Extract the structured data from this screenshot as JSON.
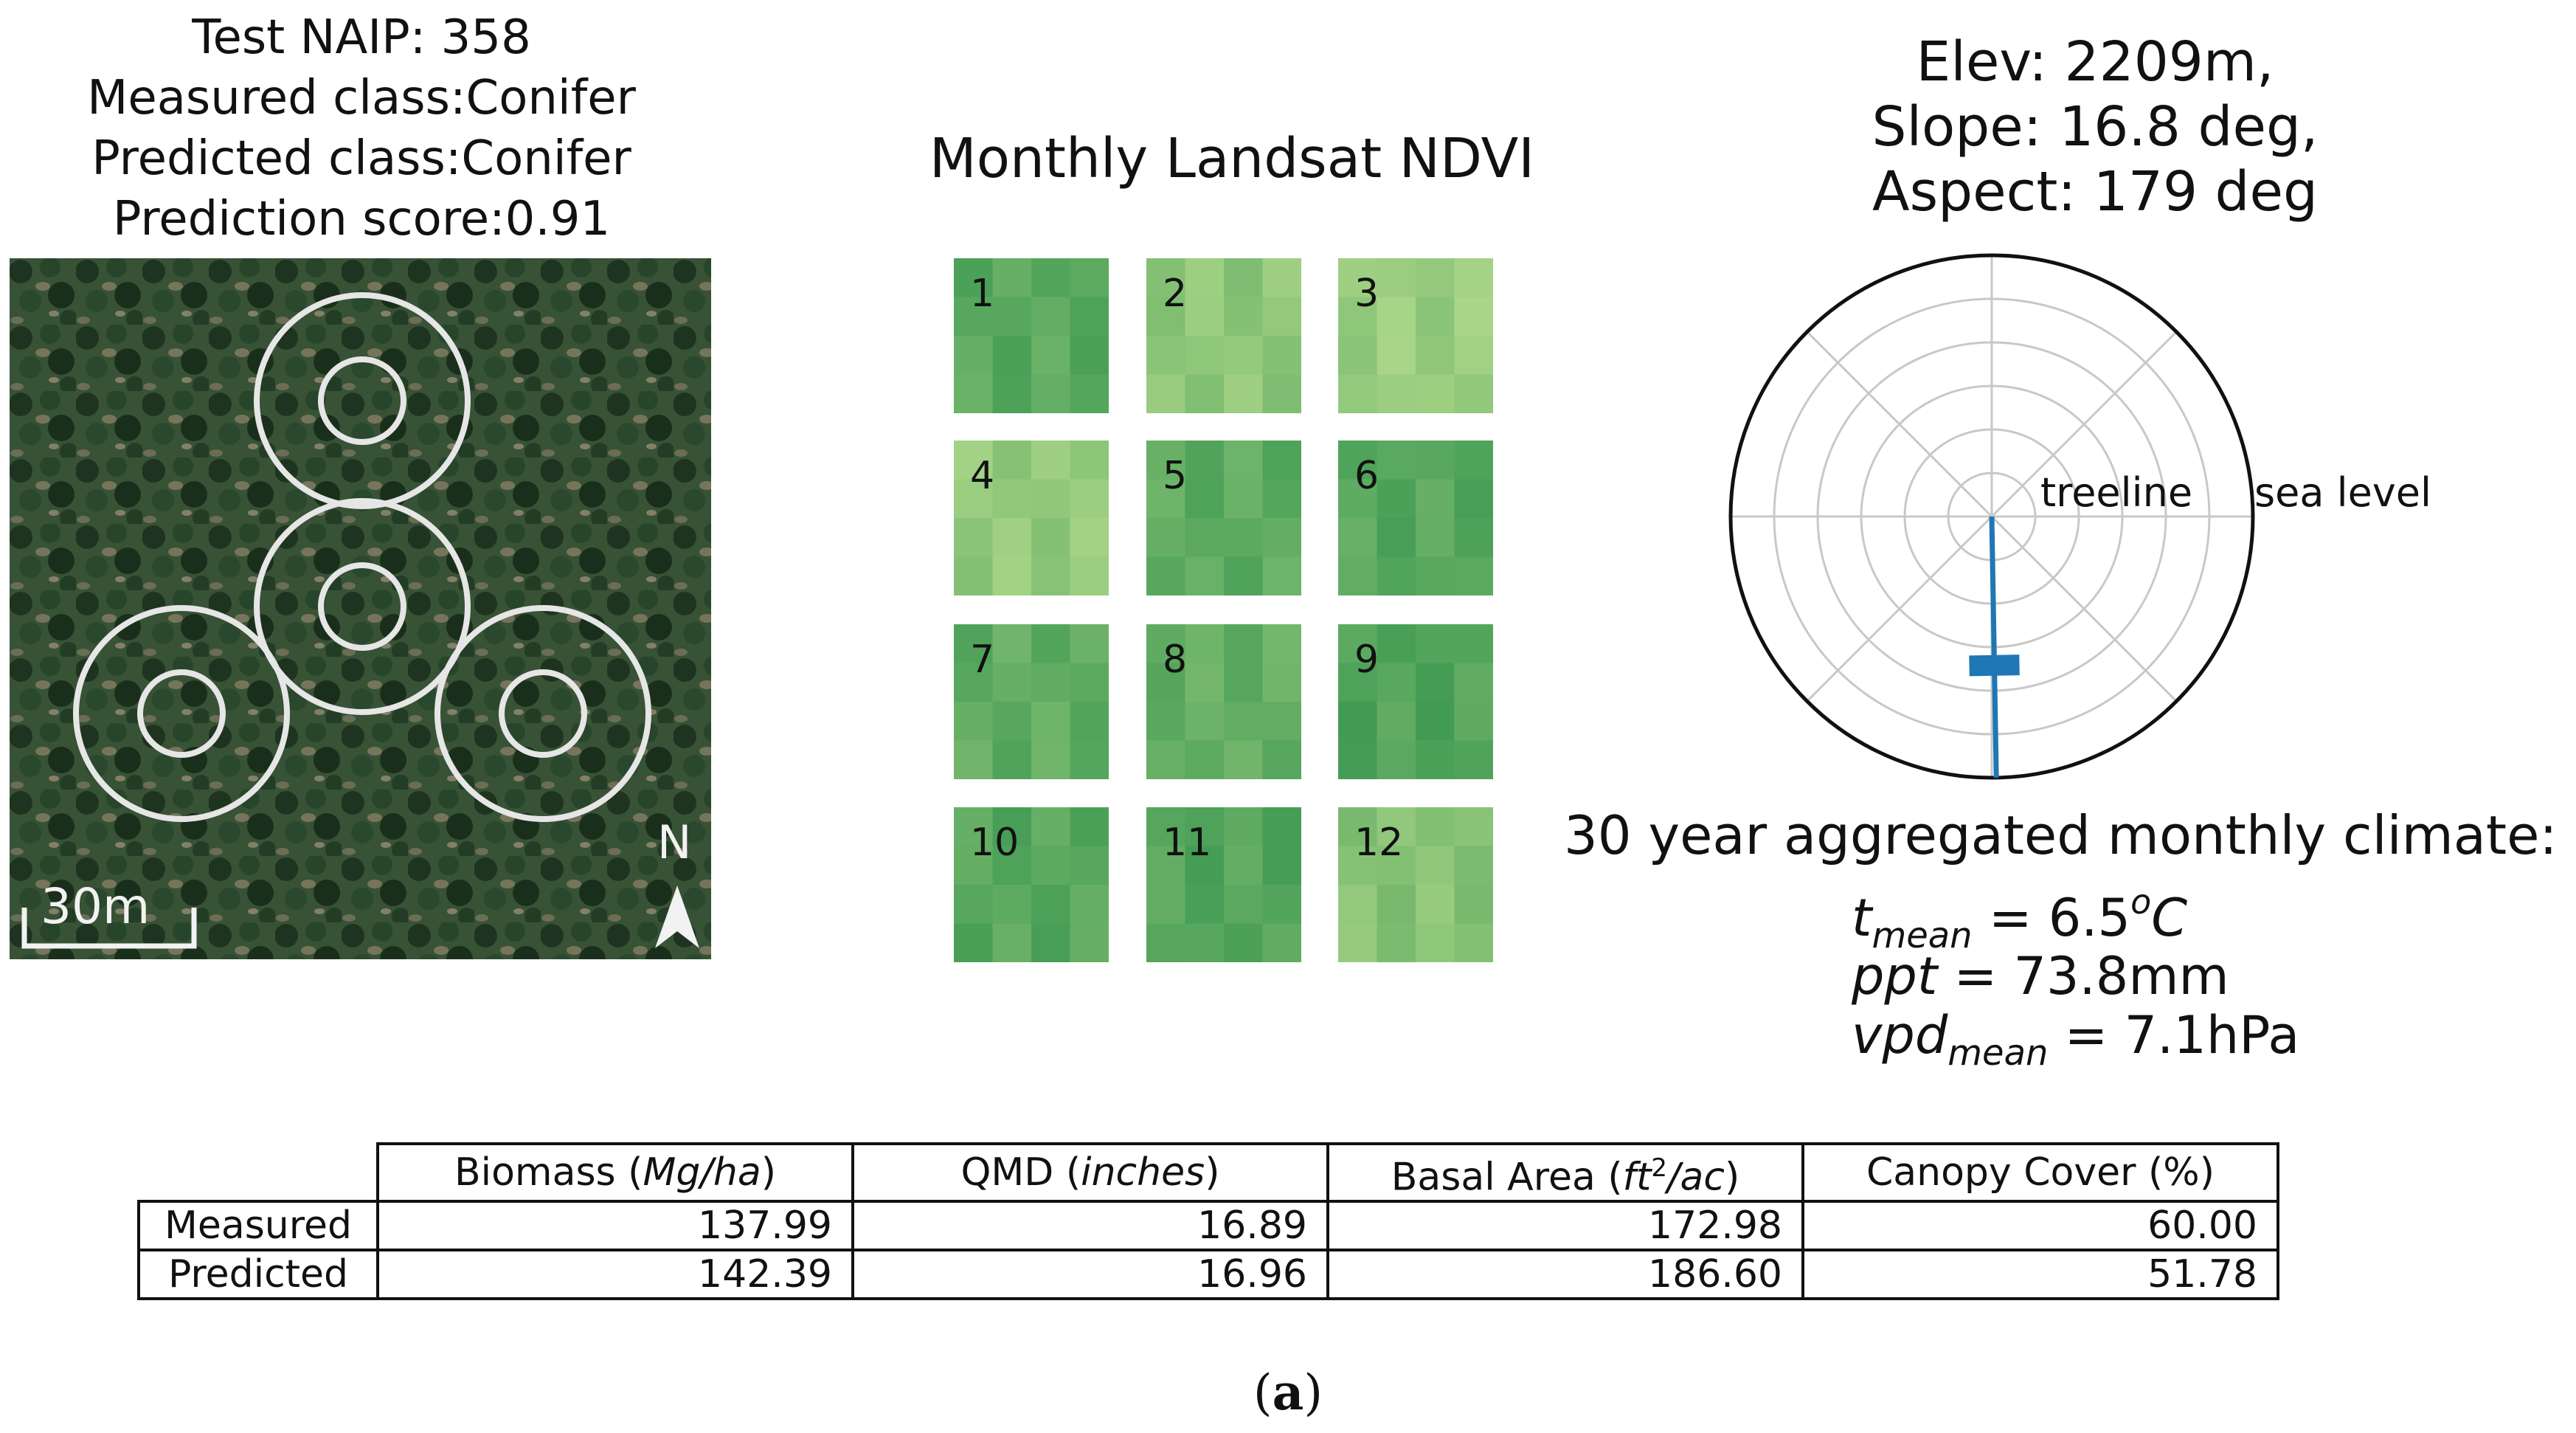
{
  "naip": {
    "title_lines": [
      "Test NAIP: 358",
      "Measured class:Conifer",
      "Predicted class:Conifer",
      "Prediction score:0.91"
    ],
    "scale_label": "30m",
    "north_label": "N"
  },
  "ndvi": {
    "title": "Monthly Landsat NDVI",
    "months": [
      "1",
      "2",
      "3",
      "4",
      "5",
      "6",
      "7",
      "8",
      "9",
      "10",
      "11",
      "12"
    ],
    "greenness": [
      0.68,
      0.35,
      0.28,
      0.32,
      0.66,
      0.7,
      0.64,
      0.62,
      0.74,
      0.7,
      0.72,
      0.4
    ]
  },
  "terrain": {
    "title_lines": [
      "Elev: 2209m,",
      "Slope: 16.8 deg,",
      "Aspect: 179 deg"
    ],
    "elevation_m": 2209,
    "slope_deg": 16.8,
    "aspect_deg": 179
  },
  "chart_data": {
    "type": "polar",
    "title": "Elev: 2209m, Slope: 16.8 deg, Aspect: 179 deg",
    "radial_labels": [
      "treeline",
      "sea level"
    ],
    "aspect_deg": 179,
    "slope_deg": 16.8,
    "elevation_m": 2209,
    "radial_position": 0.57,
    "color": "#1f77b4"
  },
  "climate": {
    "title": "30 year aggregated monthly climate:",
    "tmean": {
      "symbol": "t",
      "sub": "mean",
      "value": "6.5",
      "sup": "o",
      "unit": "C"
    },
    "ppt": {
      "symbol": "ppt",
      "value": "73.8mm"
    },
    "vpd": {
      "symbol": "vpd",
      "sub": "mean",
      "value": "7.1hPa"
    }
  },
  "table": {
    "headers": [
      {
        "plain": "Biomass (",
        "ital": "Mg/ha",
        "tail": ")"
      },
      {
        "plain": "QMD (",
        "ital": "inches",
        "tail": ")"
      },
      {
        "plain": "Basal Area (",
        "ital": "ft",
        "sup": "2",
        "ital2": "/ac",
        "tail": ")"
      },
      {
        "plain": "Canopy Cover (%)"
      }
    ],
    "rows": [
      {
        "label": "Measured",
        "values": [
          "137.99",
          "16.89",
          "172.98",
          "60.00"
        ]
      },
      {
        "label": "Predicted",
        "values": [
          "142.39",
          "16.96",
          "186.60",
          "51.78"
        ]
      }
    ]
  },
  "caption": {
    "letter": "a"
  }
}
